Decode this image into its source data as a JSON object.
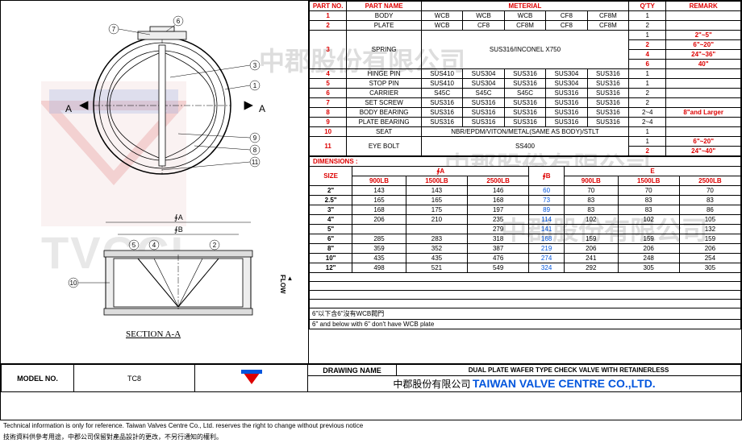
{
  "parts_header": {
    "no": "PART NO.",
    "name": "PART NAME",
    "meterial": "METERIAL",
    "qty": "Q'TY",
    "remark": "REMARK"
  },
  "parts": [
    {
      "no": "1",
      "name": "BODY",
      "m": [
        "WCB",
        "WCB",
        "WCB",
        "CF8",
        "CF8M"
      ],
      "qty": "1",
      "remark": ""
    },
    {
      "no": "2",
      "name": "PLATE",
      "m": [
        "WCB",
        "CF8",
        "CF8M",
        "CF8",
        "CF8M"
      ],
      "qty": "2",
      "remark": ""
    }
  ],
  "spring": {
    "no": "3",
    "name": "SPRING",
    "mat": "SUS316/INCONEL X750",
    "rows": [
      {
        "qty": "1",
        "remark": "2\"~5\""
      },
      {
        "qty": "2",
        "remark": "6\"~20\""
      },
      {
        "qty": "4",
        "remark": "24\"~36\""
      },
      {
        "qty": "6",
        "remark": "40\""
      }
    ]
  },
  "parts2": [
    {
      "no": "4",
      "name": "HINGE PIN",
      "m": [
        "SUS410",
        "SUS304",
        "SUS316",
        "SUS304",
        "SUS316"
      ],
      "qty": "1",
      "remark": ""
    },
    {
      "no": "5",
      "name": "STOP PIN",
      "m": [
        "SUS410",
        "SUS304",
        "SUS316",
        "SUS304",
        "SUS316"
      ],
      "qty": "1",
      "remark": ""
    },
    {
      "no": "6",
      "name": "CARRIER",
      "m": [
        "S45C",
        "S45C",
        "S45C",
        "SUS316",
        "SUS316"
      ],
      "qty": "2",
      "remark": ""
    },
    {
      "no": "7",
      "name": "SET SCREW",
      "m": [
        "SUS316",
        "SUS316",
        "SUS316",
        "SUS316",
        "SUS316"
      ],
      "qty": "2",
      "remark": ""
    },
    {
      "no": "8",
      "name": "BODY BEARING",
      "m": [
        "SUS316",
        "SUS316",
        "SUS316",
        "SUS316",
        "SUS316"
      ],
      "qty": "2~4",
      "remark": "8\"and Larger"
    },
    {
      "no": "9",
      "name": "PLATE BEARING",
      "m": [
        "SUS316",
        "SUS316",
        "SUS316",
        "SUS316",
        "SUS316"
      ],
      "qty": "2~4",
      "remark": ""
    }
  ],
  "seat": {
    "no": "10",
    "name": "SEAT",
    "mat": "NBR/EPDM/VITON/METAL(SAME AS BODY)/STLT",
    "qty": "1",
    "remark": ""
  },
  "eyebolt": {
    "no": "11",
    "name": "EYE BOLT",
    "mat": "SS400",
    "rows": [
      {
        "qty": "1",
        "remark": "6\"~20\""
      },
      {
        "qty": "2",
        "remark": "24\"~40\""
      }
    ]
  },
  "dim_title": "DIMENSIONS :",
  "dim_header": {
    "size": "SIZE",
    "phiA": "∮A",
    "phiB": "∮B",
    "E": "E",
    "sub": [
      "900LB",
      "1500LB",
      "2500LB"
    ]
  },
  "dims": [
    {
      "size": "2\"",
      "a": [
        "143",
        "143",
        "146"
      ],
      "b": "60",
      "e": [
        "70",
        "70",
        "70"
      ]
    },
    {
      "size": "2.5\"",
      "a": [
        "165",
        "165",
        "168"
      ],
      "b": "73",
      "e": [
        "83",
        "83",
        "83"
      ]
    },
    {
      "size": "3\"",
      "a": [
        "168",
        "175",
        "197"
      ],
      "b": "89",
      "e": [
        "83",
        "83",
        "86"
      ]
    },
    {
      "size": "4\"",
      "a": [
        "206",
        "210",
        "235"
      ],
      "b": "114",
      "e": [
        "102",
        "102",
        "105"
      ]
    },
    {
      "size": "5\"",
      "a": [
        "",
        "",
        "279"
      ],
      "b": "141",
      "e": [
        "",
        "",
        "132"
      ]
    },
    {
      "size": "6\"",
      "a": [
        "285",
        "283",
        "318"
      ],
      "b": "168",
      "e": [
        "159",
        "159",
        "159"
      ]
    },
    {
      "size": "8\"",
      "a": [
        "359",
        "352",
        "387"
      ],
      "b": "219",
      "e": [
        "206",
        "206",
        "206"
      ]
    },
    {
      "size": "10\"",
      "a": [
        "435",
        "435",
        "476"
      ],
      "b": "274",
      "e": [
        "241",
        "248",
        "254"
      ]
    },
    {
      "size": "12\"",
      "a": [
        "498",
        "521",
        "549"
      ],
      "b": "324",
      "e": [
        "292",
        "305",
        "305"
      ]
    }
  ],
  "notes": {
    "zh": "6\"以下含6\"沒有WCB閥門",
    "en": "6\" and below with 6\" don't have WCB plate"
  },
  "title_block": {
    "drawing_name_lbl": "DRAWING NAME",
    "drawing_name": "DUAL PLATE WAFER TYPE CHECK VALVE WITH RETAINERLESS",
    "model_lbl": "MODEL NO.",
    "model": "TC8",
    "company_zh": "中郡股份有限公司",
    "company_en": "TAIWAN VALVE CENTRE CO.,LTD."
  },
  "footer": {
    "en": "Technical information is only for reference. Taiwan Valves Centre Co., Ltd. reserves the right to change without previous notice",
    "zh": "技術資料供參考用途，中郡公司保留對產品設計的更改，不另行通知的權利。"
  },
  "labels": {
    "section": "SECTION A-A",
    "flow": "FLOW",
    "phiA": "∮A",
    "phiB": "∮B",
    "watermark": "TVCCL"
  },
  "callouts": [
    "7",
    "6",
    "3",
    "1",
    "A",
    "A",
    "9",
    "8",
    "11",
    "5",
    "4",
    "2",
    "10"
  ],
  "colors": {
    "red": "#d00",
    "blue": "#05d",
    "grey": "#e8e8e8"
  }
}
